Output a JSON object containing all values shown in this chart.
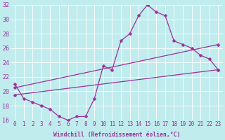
{
  "xlabel": "Windchill (Refroidissement éolien,°C)",
  "bg_color": "#c0ecee",
  "line_color": "#993399",
  "xmin": -0.5,
  "xmax": 23.5,
  "ymin": 16,
  "ymax": 32,
  "yticks": [
    16,
    18,
    20,
    22,
    24,
    26,
    28,
    30,
    32
  ],
  "xticks": [
    0,
    1,
    2,
    3,
    4,
    5,
    6,
    7,
    8,
    9,
    10,
    11,
    12,
    13,
    14,
    15,
    16,
    17,
    18,
    19,
    20,
    21,
    22,
    23
  ],
  "line1_x": [
    0,
    1,
    2,
    3,
    4,
    5,
    6,
    7,
    8,
    9,
    10,
    11,
    12,
    13,
    14,
    15,
    16,
    17,
    18,
    19,
    20,
    21,
    22,
    23
  ],
  "line1_y": [
    21,
    19,
    18.5,
    18,
    17.5,
    16.5,
    16,
    16.5,
    16.5,
    19.0,
    23.5,
    23.0,
    27.0,
    28.0,
    30.5,
    32.0,
    31.0,
    30.5,
    27.0,
    26.5,
    26.0,
    25.0,
    24.5,
    23.0
  ],
  "line2_x": [
    0,
    23
  ],
  "line2_y": [
    19.5,
    23.0
  ],
  "line3_x": [
    0,
    23
  ],
  "line3_y": [
    20.5,
    26.5
  ],
  "marker_size": 2.5,
  "line_width": 0.9,
  "xlabel_fontsize": 5.8,
  "tick_fontsize": 5.5
}
